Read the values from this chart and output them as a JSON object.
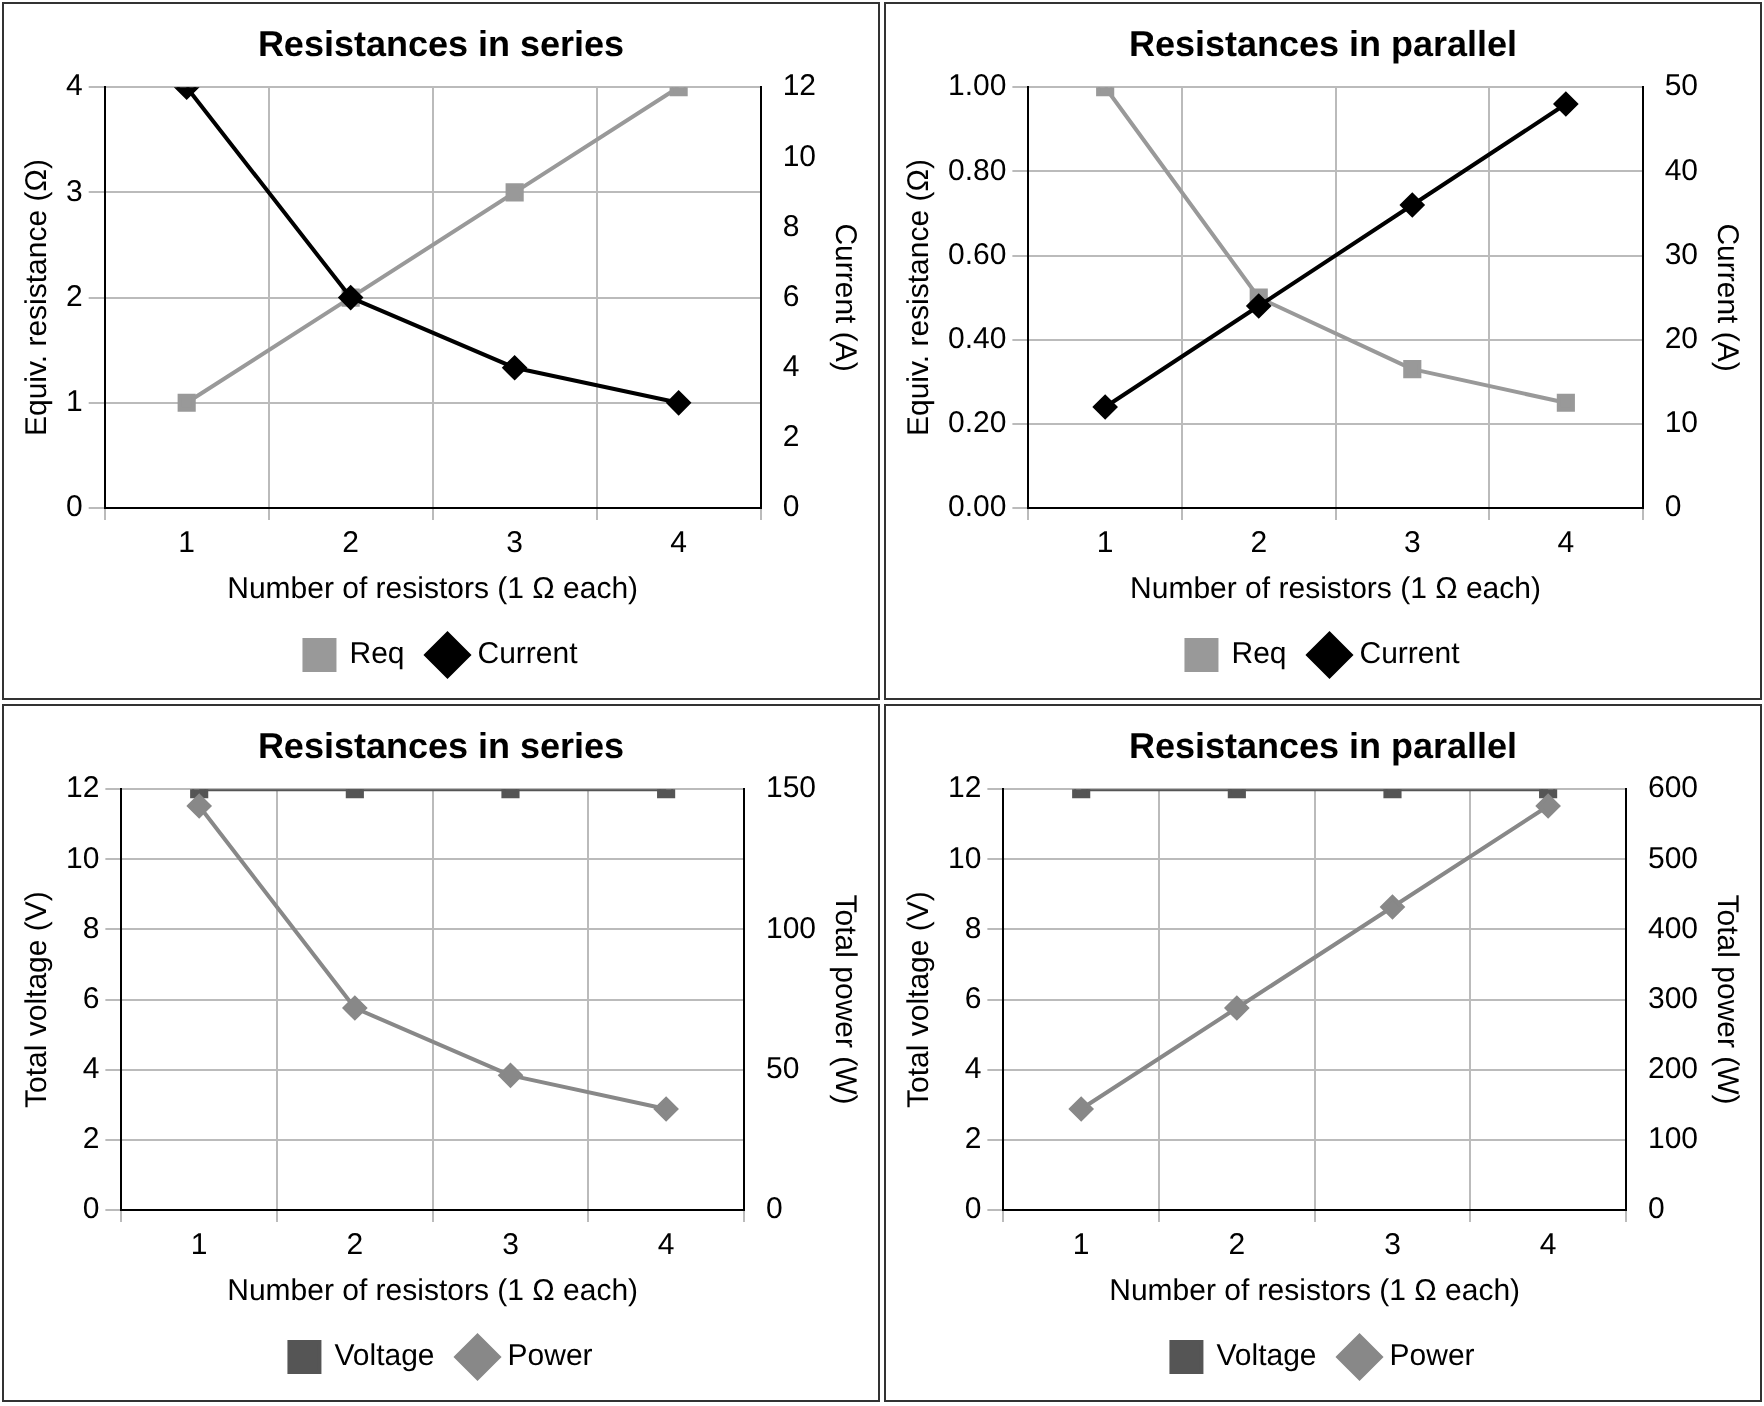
{
  "chart_data": [
    {
      "type": "line",
      "title": "Resistances in series",
      "xlabel": "Number of resistors (1 Ω each)",
      "ylabel": "Equiv. resistance (Ω)",
      "y2label": "Current (A)",
      "categories": [
        "1",
        "2",
        "3",
        "4"
      ],
      "series": [
        {
          "name": "Req",
          "color": "#999999",
          "marker": "square",
          "values": [
            1,
            2,
            3,
            4
          ]
        },
        {
          "name": "Current",
          "color": "#000000",
          "marker": "diamond",
          "axis": "y2",
          "values": [
            12,
            6,
            4,
            3
          ]
        }
      ],
      "ylim": [
        0,
        4
      ],
      "yticks": [
        0,
        1,
        2,
        3,
        4
      ],
      "y2lim": [
        0,
        12
      ],
      "y2ticks": [
        0,
        2,
        4,
        6,
        8,
        10,
        12
      ],
      "grid": true,
      "legend": "bottom",
      "line_style": "solid"
    },
    {
      "type": "line",
      "title": "Resistances in parallel",
      "xlabel": "Number of resistors (1 Ω each)",
      "ylabel": "Equiv. resistance (Ω)",
      "y2label": "Current (A)",
      "categories": [
        "1",
        "2",
        "3",
        "4"
      ],
      "series": [
        {
          "name": "Req",
          "color": "#999999",
          "marker": "square",
          "values": [
            1,
            0.5,
            0.33,
            0.25
          ]
        },
        {
          "name": "Current",
          "color": "#000000",
          "marker": "diamond",
          "axis": "y2",
          "values": [
            12,
            24,
            36,
            48
          ]
        }
      ],
      "ylim": [
        0,
        1
      ],
      "yticks": [
        {
          "value": 0,
          "label": "0.00"
        },
        {
          "value": 0.2,
          "label": "0.20"
        },
        {
          "value": 0.4,
          "label": "0.40"
        },
        {
          "value": 0.6,
          "label": "0.60"
        },
        {
          "value": 0.8,
          "label": "0.80"
        },
        {
          "value": 1,
          "label": "1.00"
        }
      ],
      "y2lim": [
        0,
        50
      ],
      "y2ticks": [
        0,
        10,
        20,
        30,
        40,
        50
      ],
      "grid": true,
      "legend": "bottom",
      "line_style": "solid"
    },
    {
      "type": "line",
      "title": "Resistances in series",
      "xlabel": "Number of resistors (1 Ω each)",
      "ylabel": "Total voltage (V)",
      "y2label": "Total power (W)",
      "categories": [
        "1",
        "2",
        "3",
        "4"
      ],
      "series": [
        {
          "name": "Voltage",
          "color": "#555555",
          "marker": "square",
          "values": [
            12,
            12,
            12,
            12
          ]
        },
        {
          "name": "Power",
          "color": "#888888",
          "marker": "diamond",
          "axis": "y2",
          "values": [
            144,
            72,
            48,
            36
          ]
        }
      ],
      "ylim": [
        0,
        12
      ],
      "yticks": [
        0,
        2,
        4,
        6,
        8,
        10,
        12
      ],
      "y2lim": [
        0,
        150
      ],
      "y2ticks": [
        0,
        50,
        100,
        150
      ],
      "grid": true,
      "legend": "bottom",
      "line_style": "solid"
    },
    {
      "type": "line",
      "title": "Resistances in parallel",
      "xlabel": "Number of resistors (1 Ω each)",
      "ylabel": "Total voltage (V)",
      "y2label": "Total power (W)",
      "categories": [
        "1",
        "2",
        "3",
        "4"
      ],
      "series": [
        {
          "name": "Voltage",
          "color": "#555555",
          "marker": "square",
          "values": [
            12,
            12,
            12,
            12
          ]
        },
        {
          "name": "Power",
          "color": "#888888",
          "marker": "diamond",
          "axis": "y2",
          "values": [
            144,
            288,
            432,
            576
          ]
        }
      ],
      "ylim": [
        0,
        12
      ],
      "yticks": [
        0,
        2,
        4,
        6,
        8,
        10,
        12
      ],
      "y2lim": [
        0,
        600
      ],
      "y2ticks": [
        0,
        100,
        200,
        300,
        400,
        500,
        600
      ],
      "grid": true,
      "legend": "bottom",
      "line_style": "solid"
    }
  ]
}
